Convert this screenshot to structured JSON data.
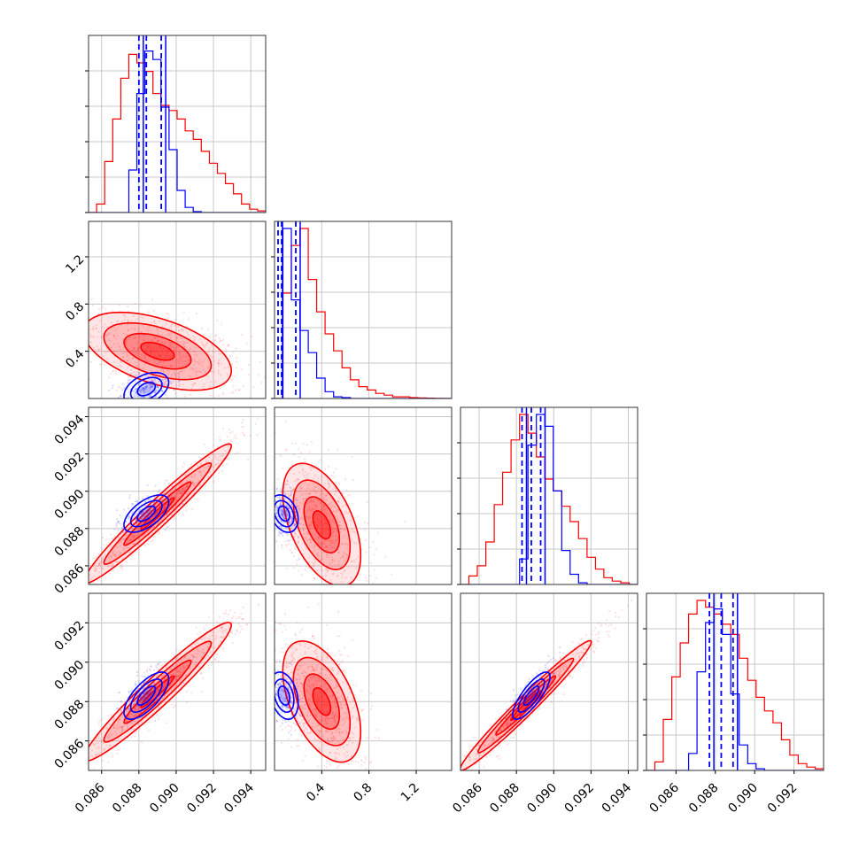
{
  "colors": {
    "red": "#ff0000",
    "blue": "#0000ff",
    "grid": "#c8c8c8",
    "axis": "#333333"
  },
  "chart_data": {
    "type": "corner",
    "grid": true,
    "series_colors": [
      "#ff0000",
      "#0000ff"
    ],
    "params": [
      {
        "range": [
          0.0853,
          0.0948
        ],
        "ticks": [
          0.086,
          0.088,
          0.09,
          0.092,
          0.094
        ],
        "tick_labels": [
          "0.086",
          "0.088",
          "0.090",
          "0.092",
          "0.094"
        ],
        "blue_quantiles": [
          0.088,
          0.0884,
          0.0892
        ]
      },
      {
        "range": [
          0.0,
          1.5
        ],
        "ticks": [
          0.4,
          0.8,
          1.2
        ],
        "tick_labels": [
          "0.4",
          "0.8",
          "1.2"
        ],
        "blue_quantiles": [
          0.03,
          0.06,
          0.18
        ]
      },
      {
        "range": [
          0.085,
          0.0945
        ],
        "ticks": [
          0.086,
          0.088,
          0.09,
          0.092,
          0.094
        ],
        "tick_labels": [
          "0.086",
          "0.088",
          "0.090",
          "0.092",
          "0.094"
        ],
        "blue_quantiles": [
          0.0883,
          0.0888,
          0.0893
        ]
      },
      {
        "range": [
          0.0845,
          0.0935
        ],
        "ticks": [
          0.086,
          0.088,
          0.09,
          0.092
        ],
        "tick_labels": [
          "0.086",
          "0.088",
          "0.090",
          "0.092"
        ],
        "blue_quantiles": [
          0.0877,
          0.0883,
          0.0889
        ]
      }
    ],
    "hist_red": [
      [
        0,
        0.05,
        0.3,
        0.55,
        0.79,
        0.93,
        0.88,
        0.83,
        0.7,
        0.63,
        0.6,
        0.55,
        0.48,
        0.43,
        0.36,
        0.29,
        0.23,
        0.17,
        0.11,
        0.05,
        0.02,
        0.01
      ],
      [
        0,
        0.62,
        0.9,
        1.0,
        0.7,
        0.51,
        0.38,
        0.28,
        0.18,
        0.11,
        0.07,
        0.05,
        0.03,
        0.02,
        0.01,
        0.01,
        0.005,
        0.003,
        0.002,
        0.001,
        0.0
      ],
      [
        0,
        0.05,
        0.11,
        0.25,
        0.47,
        0.66,
        0.85,
        1.0,
        0.89,
        0.75,
        0.62,
        0.55,
        0.46,
        0.37,
        0.27,
        0.16,
        0.09,
        0.04,
        0.02,
        0.01,
        0.0
      ],
      [
        0,
        0.05,
        0.3,
        0.55,
        0.75,
        0.92,
        1.0,
        0.96,
        0.92,
        0.86,
        0.8,
        0.66,
        0.53,
        0.43,
        0.35,
        0.28,
        0.18,
        0.09,
        0.04,
        0.02,
        0.01
      ]
    ],
    "hist_blue": [
      [
        0,
        0,
        0,
        0,
        0,
        0.25,
        0.7,
        0.95,
        0.9,
        0.62,
        0.37,
        0.13,
        0.03,
        0.005,
        0,
        0,
        0,
        0,
        0,
        0,
        0,
        0
      ],
      [
        0,
        1.0,
        0.58,
        0.4,
        0.27,
        0.12,
        0.04,
        0.01,
        0.005,
        0,
        0,
        0,
        0,
        0,
        0,
        0,
        0,
        0,
        0,
        0,
        0
      ],
      [
        0,
        0,
        0,
        0,
        0,
        0,
        0,
        0.15,
        0.82,
        1.0,
        0.93,
        0.55,
        0.2,
        0.06,
        0.01,
        0,
        0,
        0,
        0,
        0,
        0
      ],
      [
        0,
        0,
        0,
        0,
        0,
        0.1,
        0.58,
        0.87,
        0.95,
        0.8,
        0.45,
        0.15,
        0.04,
        0.01,
        0,
        0,
        0,
        0,
        0,
        0,
        0
      ]
    ],
    "joint_red": [
      {
        "mean": [
          0.089,
          0.4
        ],
        "sd": [
          0.0018,
          0.15
        ],
        "rho": -0.5
      },
      {
        "mean": [
          0.089,
          0.0888
        ],
        "sd": [
          0.0018,
          0.0017
        ],
        "rho": 0.97
      },
      {
        "mean": [
          0.4,
          0.0882
        ],
        "sd": [
          0.15,
          0.0015
        ],
        "rho": -0.5
      },
      {
        "mean": [
          0.089,
          0.0885
        ],
        "sd": [
          0.0018,
          0.0016
        ],
        "rho": 0.96
      },
      {
        "mean": [
          0.4,
          0.088
        ],
        "sd": [
          0.15,
          0.0014
        ],
        "rho": -0.5
      },
      {
        "mean": [
          0.0885,
          0.0878
        ],
        "sd": [
          0.0016,
          0.0015
        ],
        "rho": 0.98
      }
    ],
    "joint_blue": [
      {
        "mean": [
          0.0884,
          0.08
        ],
        "sd": [
          0.0006,
          0.07
        ],
        "rho": 0.4
      },
      {
        "mean": [
          0.0884,
          0.0888
        ],
        "sd": [
          0.0006,
          0.0005
        ],
        "rho": 0.6
      },
      {
        "mean": [
          0.08,
          0.0888
        ],
        "sd": [
          0.06,
          0.0005
        ],
        "rho": -0.3
      },
      {
        "mean": [
          0.0884,
          0.0883
        ],
        "sd": [
          0.0006,
          0.0006
        ],
        "rho": 0.7
      },
      {
        "mean": [
          0.08,
          0.0883
        ],
        "sd": [
          0.06,
          0.0006
        ],
        "rho": -0.3
      },
      {
        "mean": [
          0.0888,
          0.0883
        ],
        "sd": [
          0.0005,
          0.0006
        ],
        "rho": 0.8
      }
    ]
  }
}
